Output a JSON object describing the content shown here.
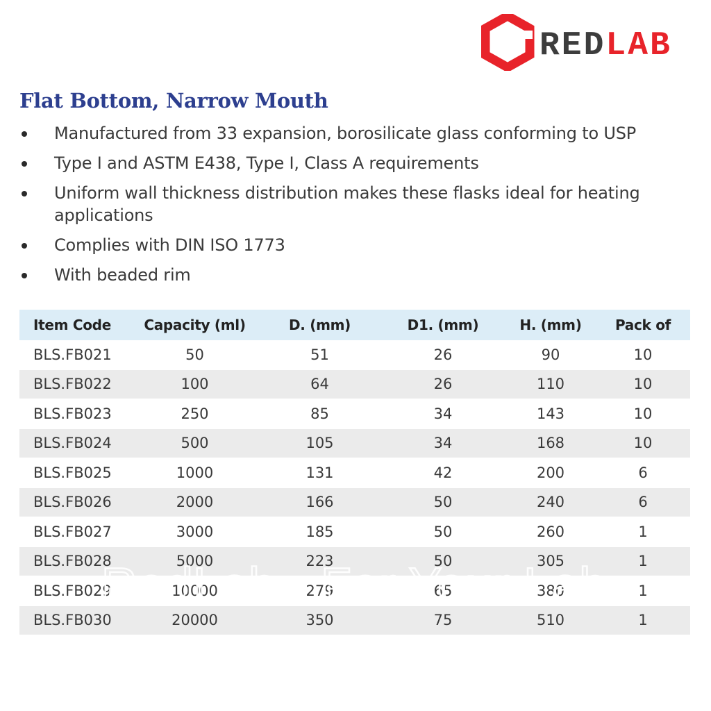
{
  "brand": {
    "text_red": "RED",
    "text_lab": "LAB",
    "red_color": "#e8232a",
    "dark_color": "#3d3d3d",
    "watermark": "RedLab - For Your Lab"
  },
  "title": "Flat Bottom, Narrow Mouth",
  "bullets": [
    "Manufactured from 33 expansion, borosilicate glass conforming to USP",
    "Type I and ASTM E438, Type I, Class A requirements",
    "Uniform wall thickness distribution makes these flasks ideal for heating applications",
    "Complies with DIN ISO  1773",
    "With beaded rim"
  ],
  "table": {
    "headers": [
      "Item Code",
      "Capacity (ml)",
      "D. (mm)",
      "D1. (mm)",
      "H. (mm)",
      "Pack of"
    ],
    "rows": [
      [
        "BLS.FB021",
        "50",
        "51",
        "26",
        "90",
        "10"
      ],
      [
        "BLS.FB022",
        "100",
        "64",
        "26",
        "110",
        "10"
      ],
      [
        "BLS.FB023",
        "250",
        "85",
        "34",
        "143",
        "10"
      ],
      [
        "BLS.FB024",
        "500",
        "105",
        "34",
        "168",
        "10"
      ],
      [
        "BLS.FB025",
        "1000",
        "131",
        "42",
        "200",
        "6"
      ],
      [
        "BLS.FB026",
        "2000",
        "166",
        "50",
        "240",
        "6"
      ],
      [
        "BLS.FB027",
        "3000",
        "185",
        "50",
        "260",
        "1"
      ],
      [
        "BLS.FB028",
        "5000",
        "223",
        "50",
        "305",
        "1"
      ],
      [
        "BLS.FB029",
        "10000",
        "279",
        "65",
        "380",
        "1"
      ],
      [
        "BLS.FB030",
        "20000",
        "350",
        "75",
        "510",
        "1"
      ]
    ]
  }
}
